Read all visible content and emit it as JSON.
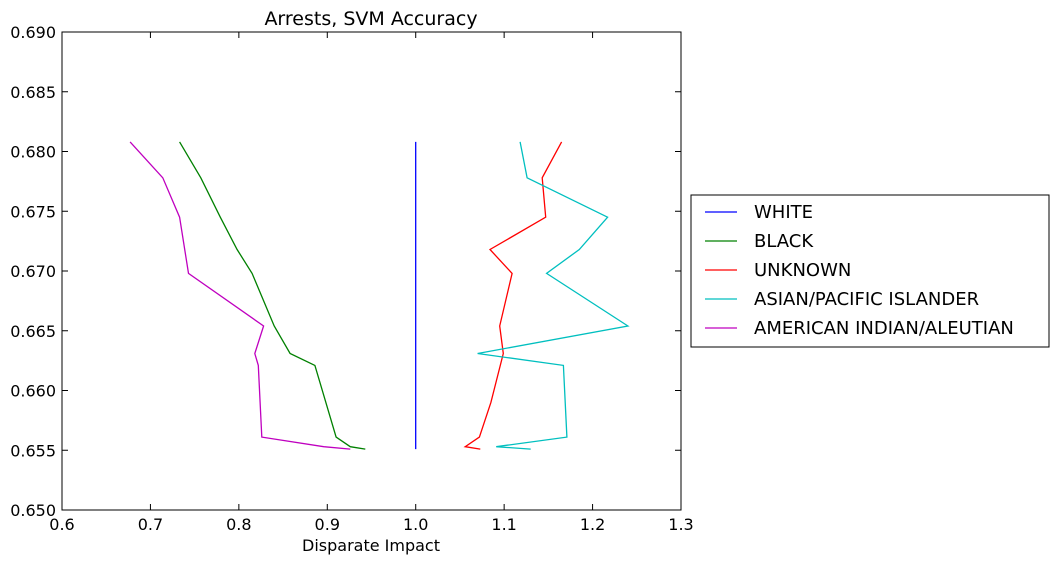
{
  "chart_data": {
    "type": "line",
    "title": "Arrests, SVM Accuracy",
    "xlabel": "Disparate Impact",
    "ylabel": "",
    "xlim": [
      0.6,
      1.3
    ],
    "ylim": [
      0.65,
      0.69
    ],
    "xticks": [
      "0.6",
      "0.7",
      "0.8",
      "0.9",
      "1.0",
      "1.1",
      "1.2",
      "1.3"
    ],
    "yticks": [
      "0.650",
      "0.655",
      "0.660",
      "0.665",
      "0.670",
      "0.675",
      "0.680",
      "0.685",
      "0.690"
    ],
    "grid": false,
    "legend_position": "outside-right",
    "series": [
      {
        "name": "WHITE",
        "color": "#0000ff",
        "x": [
          1.0,
          1.0
        ],
        "y": [
          0.6808,
          0.6551
        ]
      },
      {
        "name": "BLACK",
        "color": "#008000",
        "x": [
          0.733,
          0.757,
          0.779,
          0.798,
          0.815,
          0.84,
          0.858,
          0.886,
          0.91,
          0.926,
          0.943
        ],
        "y": [
          0.6808,
          0.6778,
          0.6745,
          0.6718,
          0.6698,
          0.6654,
          0.6631,
          0.6621,
          0.6561,
          0.6553,
          0.6551
        ]
      },
      {
        "name": "UNKNOWN",
        "color": "#ff0000",
        "x": [
          1.165,
          1.143,
          1.147,
          1.084,
          1.109,
          1.095,
          1.099,
          1.085,
          1.072,
          1.056,
          1.073
        ],
        "y": [
          0.6808,
          0.6778,
          0.6745,
          0.6718,
          0.6698,
          0.6654,
          0.6631,
          0.659,
          0.6561,
          0.6553,
          0.6551
        ]
      },
      {
        "name": "ASIAN/PACIFIC ISLANDER",
        "color": "#00bfbf",
        "x": [
          1.118,
          1.126,
          1.217,
          1.185,
          1.148,
          1.24,
          1.07,
          1.167,
          1.171,
          1.091,
          1.13
        ],
        "y": [
          0.6808,
          0.6778,
          0.6745,
          0.6718,
          0.6698,
          0.6654,
          0.6631,
          0.6621,
          0.6561,
          0.6553,
          0.6551
        ]
      },
      {
        "name": "AMERICAN INDIAN/ALEUTIAN",
        "color": "#bf00bf",
        "x": [
          0.677,
          0.714,
          0.733,
          0.743,
          0.828,
          0.818,
          0.822,
          0.826,
          0.896,
          0.926
        ],
        "y": [
          0.6808,
          0.6778,
          0.6745,
          0.6698,
          0.6654,
          0.6631,
          0.6621,
          0.6561,
          0.6553,
          0.6551
        ]
      }
    ]
  }
}
